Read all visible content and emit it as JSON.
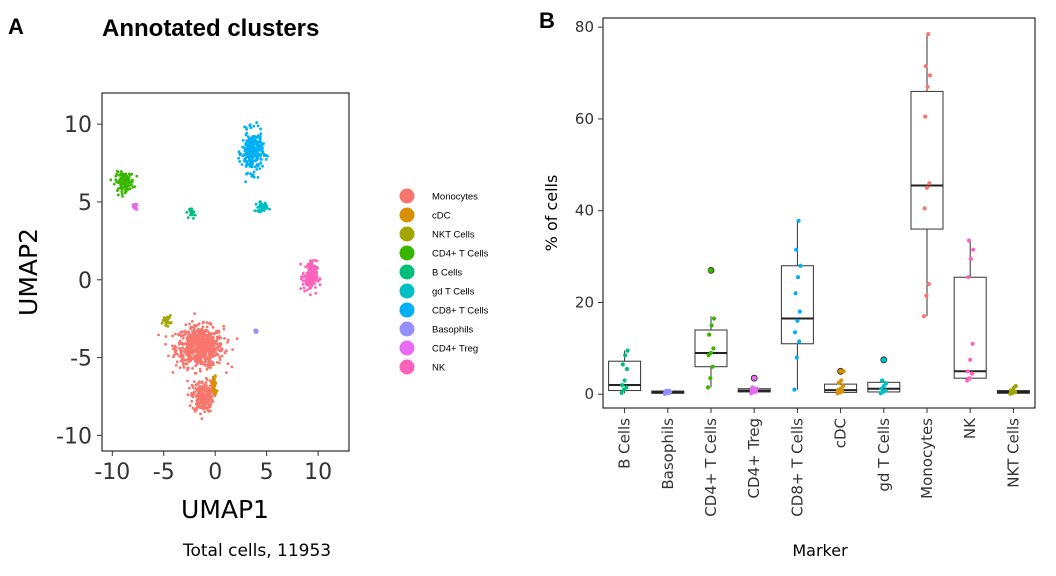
{
  "panels": {
    "a_letter": "A",
    "b_letter": "B"
  },
  "colors": {
    "Monocytes": "#F8766D",
    "cDC": "#D89000",
    "NKT Cells": "#A3A500",
    "CD4+ T Cells": "#39B600",
    "B Cells": "#00BF7D",
    "gd T Cells": "#00BFC4",
    "CD8+ T Cells": "#00B0F6",
    "Basophils": "#9590FF",
    "CD4+ Treg": "#E76BF3",
    "NK": "#FF62BC"
  },
  "umap": {
    "title": "Annotated clusters",
    "xlabel": "UMAP1",
    "ylabel": "UMAP2",
    "x_ticks": [
      "-10",
      "-5",
      "0",
      "5",
      "10"
    ],
    "y_ticks": [
      "10",
      "5",
      "0",
      "-5",
      "-10"
    ],
    "caption": "Total cells, 11953",
    "legend": [
      "Monocytes",
      "cDC",
      "NKT Cells",
      "CD4+ T Cells",
      "B Cells",
      "gd T Cells",
      "CD8+ T Cells",
      "Basophils",
      "CD4+ Treg",
      "NK"
    ]
  },
  "chart_data": [
    {
      "type": "scatter",
      "title": "Annotated clusters",
      "xlabel": "UMAP1",
      "ylabel": "UMAP2",
      "xlim": [
        -11,
        13
      ],
      "ylim": [
        -11,
        12
      ],
      "legend_position": "right",
      "total_cells": 11953,
      "clusters": [
        {
          "name": "Monocytes",
          "center": [
            -1.5,
            -4.3
          ],
          "spread": [
            2.3,
            1.3
          ]
        },
        {
          "name": "Monocytes",
          "center": [
            -1.2,
            -7.5
          ],
          "spread": [
            1.0,
            1.0
          ]
        },
        {
          "name": "cDC",
          "center": [
            -0.1,
            -6.8
          ],
          "spread": [
            0.25,
            0.7
          ]
        },
        {
          "name": "NKT Cells",
          "center": [
            -4.7,
            -2.6
          ],
          "spread": [
            0.4,
            0.3
          ]
        },
        {
          "name": "CD4+ T Cells",
          "center": [
            -8.8,
            6.3
          ],
          "spread": [
            0.9,
            0.6
          ]
        },
        {
          "name": "B Cells",
          "center": [
            -2.2,
            4.3
          ],
          "spread": [
            0.3,
            0.35
          ]
        },
        {
          "name": "gd T Cells",
          "center": [
            4.5,
            4.7
          ],
          "spread": [
            0.6,
            0.3
          ]
        },
        {
          "name": "CD8+ T Cells",
          "center": [
            3.6,
            8.2
          ],
          "spread": [
            1.0,
            1.3
          ]
        },
        {
          "name": "Basophils",
          "center": [
            4.0,
            -3.3
          ],
          "spread": [
            0.1,
            0.1
          ]
        },
        {
          "name": "CD4+ Treg",
          "center": [
            -7.8,
            4.7
          ],
          "spread": [
            0.2,
            0.2
          ]
        },
        {
          "name": "NK",
          "center": [
            9.2,
            0.2
          ],
          "spread": [
            0.7,
            1.0
          ]
        }
      ]
    },
    {
      "type": "box",
      "xlabel": "Marker",
      "ylabel": "% of cells",
      "ylim": [
        -3,
        82
      ],
      "y_ticks": [
        0,
        20,
        40,
        60,
        80
      ],
      "categories": [
        "B Cells",
        "Basophils",
        "CD4+ T Cells",
        "CD4+ Treg",
        "CD8+ T Cells",
        "cDC",
        "gd T Cells",
        "Monocytes",
        "NK",
        "NKT Cells"
      ],
      "boxes": [
        {
          "q1": 0.8,
          "median": 2.0,
          "q3": 7.2,
          "min": 0.2,
          "max": 9.5,
          "outliers": []
        },
        {
          "q1": 0.2,
          "median": 0.4,
          "q3": 0.7,
          "min": 0.1,
          "max": 0.9,
          "outliers": []
        },
        {
          "q1": 6.0,
          "median": 9.0,
          "q3": 14.0,
          "min": 1.5,
          "max": 17.0,
          "outliers": [
            27.0
          ]
        },
        {
          "q1": 0.5,
          "median": 0.8,
          "q3": 1.2,
          "min": 0.2,
          "max": 1.7,
          "outliers": [
            3.5
          ]
        },
        {
          "q1": 11.0,
          "median": 16.5,
          "q3": 28.0,
          "min": 1.0,
          "max": 38.0,
          "outliers": []
        },
        {
          "q1": 0.4,
          "median": 0.9,
          "q3": 2.2,
          "min": 0.2,
          "max": 3.0,
          "outliers": [
            5.0
          ]
        },
        {
          "q1": 0.5,
          "median": 1.2,
          "q3": 2.6,
          "min": 0.2,
          "max": 3.2,
          "outliers": [
            7.5
          ]
        },
        {
          "q1": 36.0,
          "median": 45.5,
          "q3": 66.0,
          "min": 17.0,
          "max": 78.5,
          "outliers": []
        },
        {
          "q1": 3.5,
          "median": 5.0,
          "q3": 25.5,
          "min": 3.0,
          "max": 33.5,
          "outliers": []
        },
        {
          "q1": 0.2,
          "median": 0.5,
          "q3": 0.8,
          "min": 0.1,
          "max": 1.8,
          "outliers": []
        }
      ],
      "points": [
        [
          0.3,
          1.0,
          1.5,
          2.0,
          3.0,
          5.5,
          6.5,
          8.5,
          9.5
        ],
        [
          0.1,
          0.2,
          0.3,
          0.4,
          0.5,
          0.6,
          0.7,
          0.8
        ],
        [
          1.5,
          3.5,
          6.0,
          8.5,
          9.0,
          10.0,
          13.0,
          15.0,
          16.5,
          27.0
        ],
        [
          0.2,
          0.4,
          0.6,
          0.8,
          1.0,
          1.2,
          1.5,
          3.5
        ],
        [
          1.0,
          8.0,
          11.5,
          13.5,
          16.0,
          18.0,
          22.0,
          25.5,
          28.0,
          31.5,
          37.8
        ],
        [
          0.2,
          0.4,
          0.6,
          0.9,
          1.2,
          1.8,
          2.5,
          3.0,
          5.0
        ],
        [
          0.2,
          0.5,
          0.8,
          1.2,
          1.8,
          2.4,
          3.0,
          7.5
        ],
        [
          17.0,
          21.5,
          24.0,
          40.5,
          45.0,
          46.0,
          60.5,
          67.0,
          69.5,
          71.5,
          78.5
        ],
        [
          3.0,
          3.5,
          4.5,
          5.0,
          7.5,
          11.0,
          25.5,
          29.5,
          31.5,
          33.5
        ],
        [
          0.1,
          0.3,
          0.5,
          0.8,
          1.2,
          1.8
        ]
      ]
    }
  ]
}
